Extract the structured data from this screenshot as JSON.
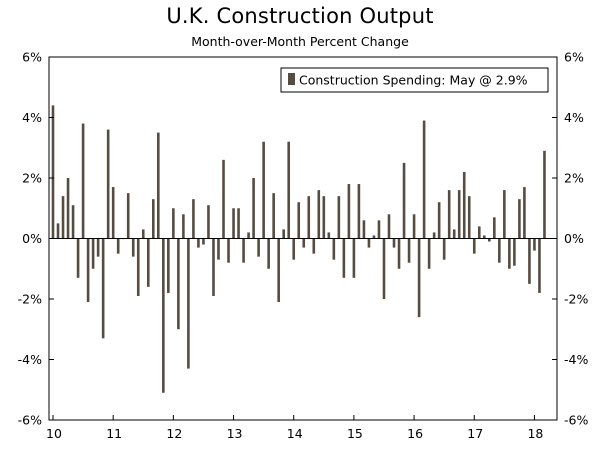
{
  "chart_data": {
    "type": "bar",
    "title": "U.K. Construction Output",
    "subtitle": "Month-over-Month Percent Change",
    "xlabel": "",
    "ylabel": "",
    "ylim": [
      -6,
      6
    ],
    "y_ticks": [
      6,
      4,
      2,
      0,
      -2,
      -4,
      -6
    ],
    "y_tick_labels": [
      "6%",
      "4%",
      "2%",
      "0%",
      "-2%",
      "-4%",
      "-6%"
    ],
    "x_start_year": 10,
    "x_tick_labels": [
      "10",
      "11",
      "12",
      "13",
      "14",
      "15",
      "16",
      "17",
      "18"
    ],
    "grid": false,
    "legend_position": "top-right",
    "bar_color": "#574c42",
    "series": [
      {
        "name": "Construction Spending: May @ 2.9%",
        "values": [
          4.4,
          0.5,
          1.4,
          2.0,
          1.1,
          -1.3,
          3.8,
          -2.1,
          -1.0,
          -0.6,
          -3.3,
          3.6,
          1.7,
          -0.5,
          0.0,
          1.5,
          -0.6,
          -1.9,
          0.3,
          -1.6,
          1.3,
          3.5,
          -5.1,
          -1.8,
          1.0,
          -3.0,
          0.8,
          -4.3,
          1.3,
          -0.3,
          -0.2,
          1.1,
          -1.9,
          -0.7,
          2.6,
          -0.8,
          1.0,
          1.0,
          -0.8,
          0.2,
          2.0,
          -0.6,
          3.2,
          -1.0,
          1.5,
          -2.1,
          0.3,
          3.2,
          -0.7,
          1.2,
          -0.3,
          1.4,
          -0.5,
          1.6,
          1.4,
          0.2,
          -0.7,
          1.4,
          -1.3,
          1.8,
          -1.3,
          1.8,
          0.6,
          -0.3,
          0.1,
          0.6,
          -2.0,
          0.8,
          -0.3,
          -1.0,
          2.5,
          -0.8,
          0.8,
          -2.6,
          3.9,
          -1.0,
          0.2,
          1.2,
          -0.7,
          1.6,
          0.3,
          1.6,
          2.2,
          1.4,
          -0.5,
          0.4,
          0.1,
          -0.1,
          0.7,
          -0.8,
          1.6,
          -1.0,
          -0.9,
          1.3,
          1.7,
          -1.5,
          -0.4,
          -1.8,
          2.9
        ]
      }
    ]
  }
}
